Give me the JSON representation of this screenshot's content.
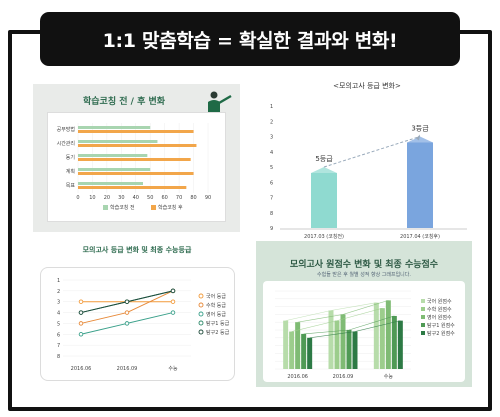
{
  "header": {
    "title": "1:1 맞춤학습 = 확실한 결과와 변화!"
  },
  "panel1": {
    "title": "학습코칭 전 / 후 변화",
    "chart_data": {
      "type": "bar",
      "orientation": "horizontal",
      "categories": [
        "공부방법",
        "시간관리",
        "동기",
        "계획",
        "목표"
      ],
      "xticks": [
        "0",
        "10",
        "20",
        "30",
        "40",
        "50",
        "60",
        "70",
        "80",
        "90"
      ],
      "xlim": [
        0,
        90
      ],
      "series": [
        {
          "name": "학습코칭 전",
          "values": [
            50,
            55,
            48,
            50,
            45
          ],
          "color": "#a8d5b0"
        },
        {
          "name": "학습코칭 후",
          "values": [
            80,
            82,
            78,
            80,
            75
          ],
          "color": "#f2a64a"
        }
      ]
    }
  },
  "panel2": {
    "chart_data": {
      "type": "bar",
      "title": "<모의고사 등급 변화>",
      "categories": [
        "2017.03 (코칭전)",
        "2017.04 (코칭후)"
      ],
      "values": [
        5,
        3
      ],
      "data_labels": [
        "5등급",
        "3등급"
      ],
      "yticks": [
        "1",
        "2",
        "3",
        "4",
        "5",
        "6",
        "7",
        "8",
        "9"
      ],
      "ylim": [
        1,
        9
      ],
      "y_inverted": true,
      "colors": [
        "#8fdad0",
        "#7aa5de"
      ]
    }
  },
  "panel3": {
    "title": "모의고사 등급 변화 및 최종 수능등급",
    "chart_data": {
      "type": "line",
      "categories": [
        "2016.06",
        "2016.09",
        "수능"
      ],
      "yticks": [
        "1",
        "2",
        "3",
        "4",
        "5",
        "6",
        "7",
        "8"
      ],
      "ylim": [
        1,
        8
      ],
      "y_inverted": true,
      "series": [
        {
          "name": "국어 등급",
          "values": [
            3,
            3,
            3
          ],
          "color": "#f29a3a"
        },
        {
          "name": "수학 등급",
          "values": [
            5,
            4,
            2
          ],
          "color": "#e78a3a"
        },
        {
          "name": "영어 등급",
          "values": [
            6,
            5,
            4
          ],
          "color": "#3aa08a"
        },
        {
          "name": "탐구1 등급",
          "values": [
            4,
            3,
            2
          ],
          "color": "#2d8a6a"
        },
        {
          "name": "탐구2 등급",
          "values": [
            4,
            3,
            2
          ],
          "color": "#1d4a3a"
        }
      ]
    }
  },
  "panel4": {
    "title": "모의고사 원점수 변화 및 최종 수능점수",
    "subtitle": "수험들 받은 후 월별 성적 향상 그래프입니다.",
    "chart_data": {
      "type": "bar",
      "categories": [
        "2016.06",
        "2016.09",
        "수능"
      ],
      "series": [
        {
          "name": "국어 원점수",
          "values": [
            62,
            75,
            85
          ],
          "color": "#b7dcaa"
        },
        {
          "name": "수학 원점수",
          "values": [
            48,
            62,
            78
          ],
          "color": "#9ccd8c"
        },
        {
          "name": "영어 원점수",
          "values": [
            60,
            70,
            88
          ],
          "color": "#7fbb74"
        },
        {
          "name": "탐구1 원점수",
          "values": [
            45,
            50,
            68
          ],
          "color": "#4f9a55"
        },
        {
          "name": "탐구2 원점수",
          "values": [
            40,
            48,
            62
          ],
          "color": "#2d7a45"
        }
      ]
    }
  }
}
